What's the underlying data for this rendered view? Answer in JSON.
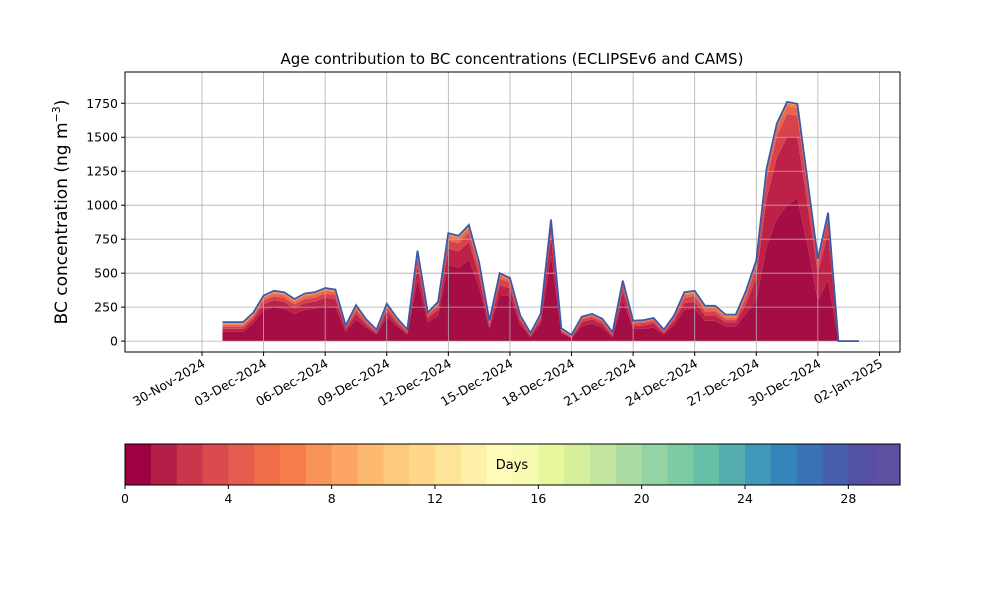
{
  "chart_data": [
    {
      "type": "area",
      "stacked": true,
      "title": "Age contribution to BC concentrations (ECLIPSEv6 and CAMS)",
      "ylabel": "BC concentration (ng m",
      "ylabel_superscript": "−3",
      "ylabel_close": ")",
      "xlabel": "",
      "grid": true,
      "x_tick_labels": [
        "30-Nov-2024",
        "03-Dec-2024",
        "06-Dec-2024",
        "09-Dec-2024",
        "12-Dec-2024",
        "15-Dec-2024",
        "18-Dec-2024",
        "21-Dec-2024",
        "24-Dec-2024",
        "27-Dec-2024",
        "30-Dec-2024",
        "02-Jan-2025"
      ],
      "ylim": [
        -80,
        1980
      ],
      "y_ticks": [
        0,
        250,
        500,
        750,
        1000,
        1250,
        1500,
        1750
      ],
      "y_tick_labels": [
        "0",
        "250",
        "500",
        "750",
        "1000",
        "1250",
        "1500",
        "1750"
      ],
      "x": [
        "2024-12-01",
        "2024-12-01T12:00",
        "2024-12-02",
        "2024-12-02T12:00",
        "2024-12-03",
        "2024-12-03T12:00",
        "2024-12-04",
        "2024-12-04T12:00",
        "2024-12-05",
        "2024-12-05T12:00",
        "2024-12-06",
        "2024-12-06T12:00",
        "2024-12-07",
        "2024-12-07T12:00",
        "2024-12-08",
        "2024-12-08T12:00",
        "2024-12-09",
        "2024-12-09T12:00",
        "2024-12-10",
        "2024-12-10T12:00",
        "2024-12-11",
        "2024-12-11T12:00",
        "2024-12-12",
        "2024-12-12T12:00",
        "2024-12-13",
        "2024-12-13T12:00",
        "2024-12-14",
        "2024-12-14T12:00",
        "2024-12-15",
        "2024-12-15T12:00",
        "2024-12-16",
        "2024-12-16T12:00",
        "2024-12-17",
        "2024-12-17T12:00",
        "2024-12-18",
        "2024-12-18T12:00",
        "2024-12-19",
        "2024-12-19T12:00",
        "2024-12-20",
        "2024-12-20T12:00",
        "2024-12-21",
        "2024-12-21T12:00",
        "2024-12-22",
        "2024-12-22T12:00",
        "2024-12-23",
        "2024-12-23T12:00",
        "2024-12-24",
        "2024-12-24T12:00",
        "2024-12-25",
        "2024-12-25T12:00",
        "2024-12-26",
        "2024-12-26T12:00",
        "2024-12-27",
        "2024-12-27T12:00",
        "2024-12-28",
        "2024-12-28T12:00",
        "2024-12-29",
        "2024-12-29T12:00",
        "2024-12-30",
        "2024-12-30T12:00",
        "2024-12-31",
        "2024-12-31T12:00",
        "2025-01-01"
      ],
      "series": [
        {
          "values": [
            70,
            70,
            70,
            130,
            230,
            250,
            240,
            200,
            230,
            240,
            260,
            250,
            70,
            160,
            100,
            50,
            180,
            110,
            50,
            450,
            140,
            190,
            560,
            540,
            600,
            400,
            90,
            340,
            330,
            120,
            30,
            130,
            630,
            60,
            20,
            110,
            130,
            100,
            30,
            300,
            90,
            90,
            100,
            50,
            120,
            230,
            240,
            150,
            150,
            110,
            110,
            200,
            300,
            700,
            900,
            1000,
            1050,
            700,
            300,
            450,
            0,
            0,
            0
          ],
          "color": "#a50d45"
        },
        {
          "values": [
            20,
            20,
            20,
            30,
            40,
            50,
            50,
            40,
            50,
            50,
            60,
            60,
            20,
            40,
            20,
            10,
            40,
            20,
            10,
            100,
            30,
            40,
            120,
            120,
            130,
            80,
            20,
            70,
            60,
            30,
            10,
            30,
            150,
            10,
            5,
            30,
            30,
            25,
            10,
            70,
            20,
            25,
            30,
            10,
            30,
            50,
            50,
            40,
            40,
            30,
            30,
            70,
            170,
            350,
            450,
            500,
            450,
            300,
            200,
            350,
            0,
            0,
            0
          ],
          "color": "#bd2148"
        },
        {
          "values": [
            20,
            20,
            20,
            20,
            30,
            30,
            30,
            30,
            30,
            30,
            30,
            30,
            10,
            30,
            20,
            10,
            30,
            20,
            10,
            60,
            20,
            30,
            60,
            60,
            70,
            50,
            20,
            50,
            40,
            20,
            5,
            20,
            70,
            10,
            5,
            20,
            20,
            20,
            10,
            40,
            20,
            20,
            20,
            10,
            20,
            40,
            40,
            30,
            30,
            20,
            20,
            50,
            80,
            140,
            160,
            170,
            160,
            120,
            70,
            100,
            0,
            0,
            0
          ],
          "color": "#d8424c"
        },
        {
          "values": [
            10,
            10,
            10,
            10,
            15,
            20,
            20,
            20,
            20,
            20,
            20,
            20,
            5,
            15,
            10,
            5,
            15,
            10,
            5,
            30,
            10,
            15,
            30,
            30,
            30,
            25,
            10,
            25,
            20,
            10,
            5,
            10,
            30,
            5,
            5,
            10,
            10,
            10,
            5,
            20,
            10,
            10,
            10,
            5,
            10,
            20,
            20,
            20,
            20,
            15,
            15,
            25,
            30,
            50,
            60,
            60,
            55,
            40,
            20,
            30,
            0,
            0,
            0
          ],
          "color": "#e8674f"
        },
        {
          "values": [
            10,
            10,
            10,
            10,
            10,
            10,
            10,
            10,
            10,
            10,
            10,
            10,
            5,
            10,
            5,
            5,
            5,
            5,
            5,
            15,
            5,
            10,
            15,
            15,
            15,
            15,
            5,
            10,
            10,
            5,
            5,
            5,
            10,
            5,
            5,
            5,
            5,
            5,
            5,
            10,
            5,
            5,
            5,
            5,
            5,
            10,
            10,
            10,
            10,
            10,
            10,
            15,
            10,
            20,
            20,
            20,
            20,
            15,
            10,
            10,
            0,
            0,
            0
          ],
          "color": "#f57f4a"
        },
        {
          "values": [
            10,
            10,
            10,
            10,
            10,
            10,
            10,
            10,
            10,
            10,
            10,
            10,
            5,
            10,
            5,
            5,
            5,
            5,
            5,
            10,
            5,
            5,
            10,
            10,
            10,
            10,
            5,
            5,
            5,
            5,
            5,
            5,
            5,
            5,
            5,
            5,
            5,
            5,
            5,
            5,
            5,
            5,
            5,
            5,
            5,
            10,
            10,
            10,
            10,
            10,
            10,
            10,
            5,
            10,
            10,
            10,
            10,
            5,
            5,
            5,
            0,
            0,
            0
          ],
          "color": "#fdae61"
        }
      ]
    },
    {
      "type": "colorbar",
      "label": "Days",
      "range": [
        0,
        30
      ],
      "ticks": [
        0,
        4,
        8,
        12,
        16,
        20,
        24,
        28
      ],
      "tick_labels": [
        "0",
        "4",
        "8",
        "12",
        "16",
        "20",
        "24",
        "28"
      ],
      "colors": [
        "#9e0142",
        "#b41f48",
        "#ca364c",
        "#db4a4c",
        "#e65c4f",
        "#ef6d47",
        "#f67c4a",
        "#f99458",
        "#fca564",
        "#fdb96e",
        "#fdc97a",
        "#fed788",
        "#fee498",
        "#fff0a8",
        "#fffbb9",
        "#f6fbb1",
        "#e8f69c",
        "#d7ef9b",
        "#c2e6a0",
        "#abdda3",
        "#94d4a4",
        "#7ccba5",
        "#66bfa6",
        "#55adaf",
        "#3f99b9",
        "#3585bc",
        "#3a72b5",
        "#4760ab",
        "#5450a4",
        "#5e4fa2"
      ]
    }
  ]
}
